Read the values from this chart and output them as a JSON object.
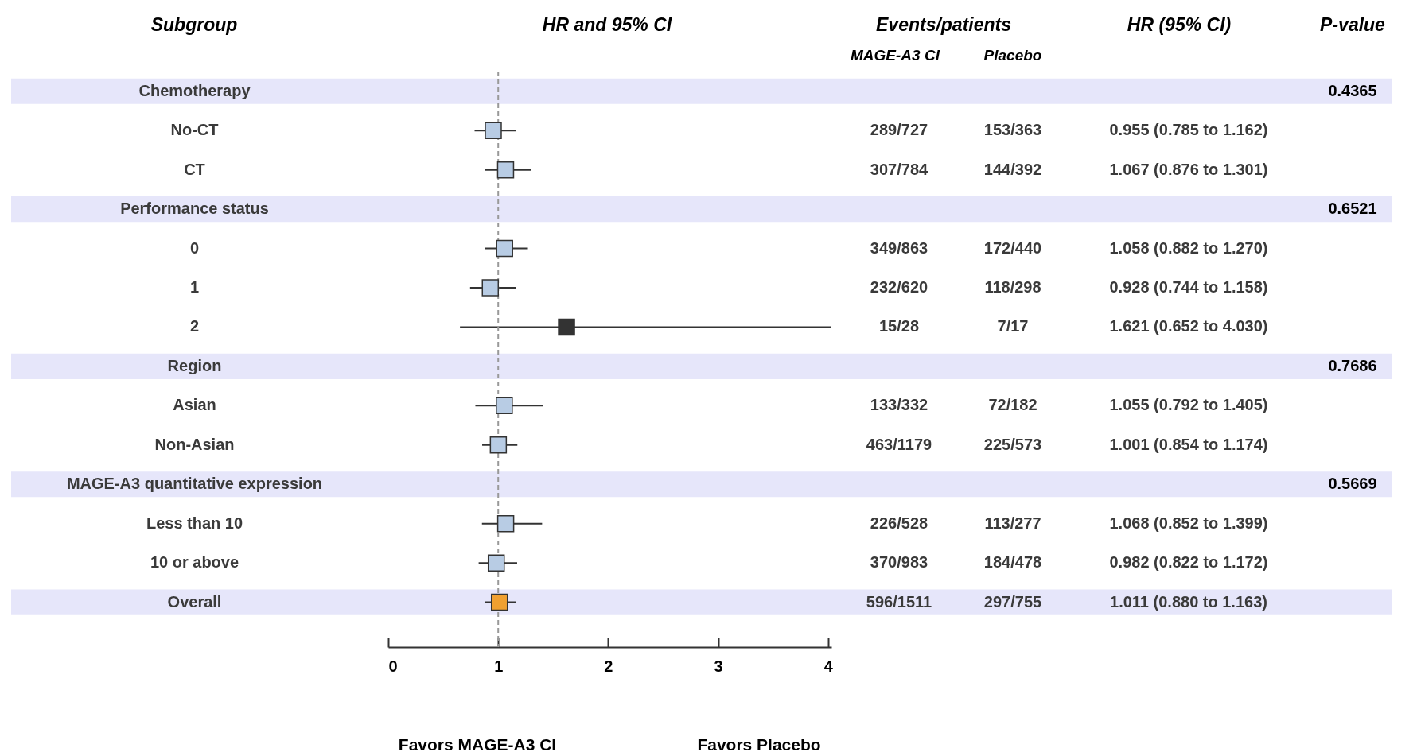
{
  "chart_data": {
    "type": "scatter",
    "orientation": "horizontal",
    "marker": "square",
    "legend": false,
    "categories": [
      "Chemotherapy",
      "No-CT",
      "CT",
      "Performance status",
      "0",
      "1",
      "2",
      "Region",
      "Asian",
      "Non-Asian",
      "MAGE-A3 quantitative expression",
      "Less than 10",
      "10 or above",
      "Overall"
    ],
    "values": [
      null,
      0.955,
      1.067,
      null,
      1.058,
      0.928,
      1.621,
      null,
      1.055,
      1.001,
      null,
      1.068,
      0.982,
      1.011
    ],
    "errors": [
      null,
      [
        0.785,
        1.162
      ],
      [
        0.876,
        1.301
      ],
      null,
      [
        0.882,
        1.27
      ],
      [
        0.744,
        1.158
      ],
      [
        0.652,
        4.03
      ],
      null,
      [
        0.792,
        1.405
      ],
      [
        0.854,
        1.174
      ],
      null,
      [
        0.852,
        1.399
      ],
      [
        0.822,
        1.172
      ],
      [
        0.88,
        1.163
      ]
    ],
    "value_labels": [
      null,
      "0.955 (0.785 to 1.162)",
      "1.067 (0.876 to 1.301)",
      null,
      "1.058 (0.882 to 1.270)",
      "0.928 (0.744 to 1.158)",
      "1.621 (0.652 to 4.030)",
      null,
      "1.055 (0.792 to 1.405)",
      "1.001 (0.854 to 1.174)",
      null,
      "1.068 (0.852 to 1.399)",
      "0.982 (0.822 to 1.172)",
      "1.011 (0.880 to 1.163)"
    ],
    "colors": [
      "#b8cce4",
      "#b8cce4",
      "#b8cce4",
      "#b8cce4",
      "#b8cce4",
      "#b8cce4",
      "#333333",
      "#b8cce4",
      "#b8cce4",
      "#b8cce4",
      "#b8cce4",
      "#b8cce4",
      "#b8cce4",
      "#f0a030"
    ],
    "xlim": [
      0,
      4.03
    ],
    "xticks": [
      0,
      1,
      2,
      3,
      4
    ],
    "grid": false,
    "ref_lines": [
      {
        "axis": "x",
        "value": 1,
        "color": "#999999",
        "line_style": "dashed"
      }
    ],
    "bands": [
      {
        "axis": "y",
        "from": "Chemotherapy",
        "to": "Chemotherapy",
        "color": "#e6e6fa"
      },
      {
        "axis": "y",
        "from": "Performance status",
        "to": "Performance status",
        "color": "#e6e6fa"
      },
      {
        "axis": "y",
        "from": "Region",
        "to": "Region",
        "color": "#e6e6fa"
      },
      {
        "axis": "y",
        "from": "MAGE-A3 quantitative expression",
        "to": "MAGE-A3 quantitative expression",
        "color": "#e6e6fa"
      },
      {
        "axis": "y",
        "from": "Overall",
        "to": "Overall",
        "color": "#e6e6fa"
      }
    ],
    "annotations": [
      "Subgroup",
      "HR and 95% CI",
      "Events/patients",
      "MAGE-A3 CI",
      "Placebo",
      "HR  (95% CI)",
      "P-value",
      "Favors MAGE-A3 CI",
      "Favors Placebo",
      "0.4365",
      "289/727",
      "153/363",
      "307/784",
      "144/392",
      "0.6521",
      "349/863",
      "172/440",
      "232/620",
      "118/298",
      "15/28",
      "7/17",
      "0.7686",
      "133/332",
      "72/182",
      "463/1179",
      "225/573",
      "0.5669",
      "226/528",
      "113/277",
      "370/983",
      "184/478",
      "596/1511",
      "297/755"
    ]
  }
}
